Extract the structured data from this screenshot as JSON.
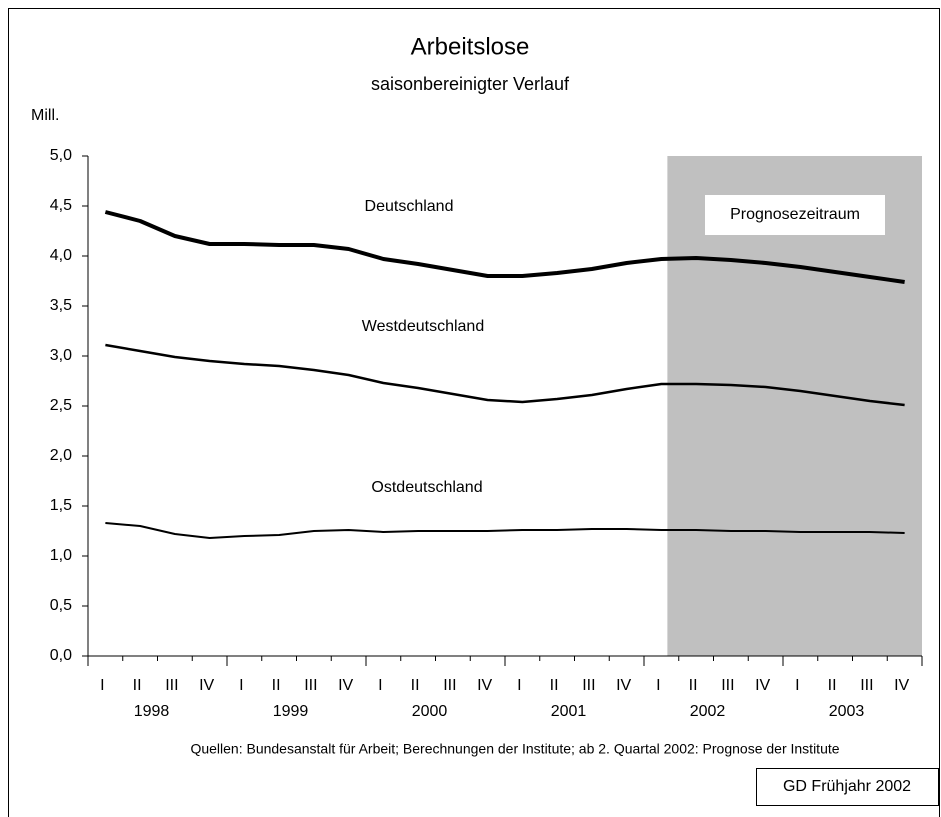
{
  "chart_data": {
    "type": "line",
    "title": "Arbeitslose",
    "subtitle": "saisonbereinigter Verlauf",
    "y_label": "Mill.",
    "source": "Quellen: Bundesanstalt für Arbeit; Berechnungen der Institute; ab 2. Quartal 2002: Prognose der Institute",
    "badge": "GD Frühjahr 2002",
    "categories": [
      "I",
      "II",
      "III",
      "IV",
      "I",
      "II",
      "III",
      "IV",
      "I",
      "II",
      "III",
      "IV",
      "I",
      "II",
      "III",
      "IV",
      "I",
      "II",
      "III",
      "IV",
      "I",
      "II",
      "III",
      "IV"
    ],
    "years": [
      "1998",
      "1999",
      "2000",
      "2001",
      "2002",
      "2003"
    ],
    "forecast": {
      "label": "Prognosezeitraum",
      "start_index": 17,
      "color": "#c0c0c0"
    },
    "ylim": [
      0,
      5
    ],
    "yticks": [
      {
        "value": 0,
        "label": "0,0"
      },
      {
        "value": 0.5,
        "label": "0,5"
      },
      {
        "value": 1,
        "label": "1,0"
      },
      {
        "value": 1.5,
        "label": "1,5"
      },
      {
        "value": 2,
        "label": "2,0"
      },
      {
        "value": 2.5,
        "label": "2,5"
      },
      {
        "value": 3,
        "label": "3,0"
      },
      {
        "value": 3.5,
        "label": "3,5"
      },
      {
        "value": 4,
        "label": "4,0"
      },
      {
        "value": 4.5,
        "label": "4,5"
      },
      {
        "value": 5,
        "label": "5,0"
      }
    ],
    "grid": false,
    "series": [
      {
        "name": "Deutschland",
        "color": "#000000",
        "width": 4,
        "values": [
          4.44,
          4.35,
          4.2,
          4.12,
          4.12,
          4.11,
          4.11,
          4.07,
          3.97,
          3.92,
          3.86,
          3.8,
          3.8,
          3.83,
          3.87,
          3.93,
          3.97,
          3.98,
          3.96,
          3.93,
          3.89,
          3.84,
          3.79,
          3.74
        ]
      },
      {
        "name": "Westdeutschland",
        "color": "#000000",
        "width": 2.5,
        "values": [
          3.11,
          3.05,
          2.99,
          2.95,
          2.92,
          2.9,
          2.86,
          2.81,
          2.73,
          2.68,
          2.62,
          2.56,
          2.54,
          2.57,
          2.61,
          2.67,
          2.72,
          2.72,
          2.71,
          2.69,
          2.65,
          2.6,
          2.55,
          2.51
        ]
      },
      {
        "name": "Ostdeutschland",
        "color": "#000000",
        "width": 2,
        "values": [
          1.33,
          1.3,
          1.22,
          1.18,
          1.2,
          1.21,
          1.25,
          1.26,
          1.24,
          1.25,
          1.25,
          1.25,
          1.26,
          1.26,
          1.27,
          1.27,
          1.26,
          1.26,
          1.25,
          1.25,
          1.24,
          1.24,
          1.24,
          1.23
        ]
      }
    ]
  }
}
